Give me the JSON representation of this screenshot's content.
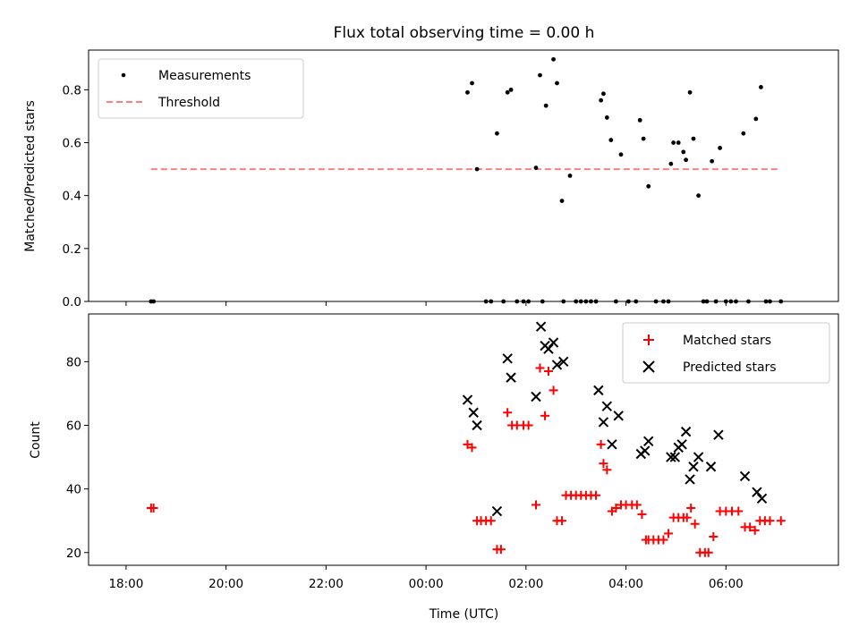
{
  "chart_data": [
    {
      "type": "scatter",
      "title": "Flux total observing time = 0.00 h",
      "xlabel": "",
      "ylabel": "Matched/Predicted stars",
      "xlim": [
        -6.75,
        8.25
      ],
      "ylim": [
        0,
        0.95
      ],
      "yticks": [
        0,
        0.2,
        0.4,
        0.6,
        0.8
      ],
      "ytick_labels": [
        "0.0",
        "0.2",
        "0.4",
        "0.6",
        "0.8"
      ],
      "legend_position": "top-left",
      "series": [
        {
          "name": "Measurements",
          "marker": "dot",
          "color": "#000000",
          "x": [
            -5.5,
            -5.45,
            0.83,
            0.92,
            1.02,
            1.2,
            1.3,
            1.42,
            1.55,
            1.63,
            1.7,
            1.82,
            1.95,
            2.05,
            2.2,
            2.28,
            2.33,
            2.4,
            2.55,
            2.62,
            2.72,
            2.75,
            2.88,
            3.0,
            3.1,
            3.2,
            3.3,
            3.4,
            3.5,
            3.55,
            3.62,
            3.7,
            3.8,
            3.9,
            4.05,
            4.2,
            4.28,
            4.35,
            4.45,
            4.6,
            4.75,
            4.85,
            4.9,
            4.95,
            5.05,
            5.15,
            5.2,
            5.28,
            5.35,
            5.45,
            5.55,
            5.62,
            5.72,
            5.8,
            5.88,
            6.0,
            6.1,
            6.2,
            6.35,
            6.45,
            6.6,
            6.7,
            6.8,
            6.88,
            7.1
          ],
          "y": [
            0.0,
            0.0,
            0.79,
            0.825,
            0.5,
            0.0,
            0.0,
            0.635,
            0.0,
            0.79,
            0.8,
            0.0,
            0.0,
            0.0,
            0.505,
            0.855,
            0.0,
            0.74,
            0.915,
            0.825,
            0.38,
            0.0,
            0.475,
            0.0,
            0.0,
            0.0,
            0.0,
            0.0,
            0.76,
            0.785,
            0.695,
            0.61,
            0.0,
            0.555,
            0.0,
            0.0,
            0.685,
            0.615,
            0.435,
            0.0,
            0.0,
            0.0,
            0.52,
            0.6,
            0.6,
            0.565,
            0.535,
            0.79,
            0.615,
            0.4,
            0.0,
            0.0,
            0.53,
            0.0,
            0.58,
            0.0,
            0.0,
            0.0,
            0.635,
            0.0,
            0.69,
            0.81,
            0.0,
            0.0,
            0.0
          ]
        },
        {
          "name": "Threshold",
          "marker": "dashed-line",
          "color": "#ff7f7f",
          "x": [
            -5.5,
            7.1
          ],
          "y": [
            0.5,
            0.5
          ]
        }
      ]
    },
    {
      "type": "scatter",
      "title": "",
      "xlabel": "Time (UTC)",
      "ylabel": "Count",
      "xlim": [
        -6.75,
        8.25
      ],
      "ylim": [
        16,
        95
      ],
      "xticks": [
        -6,
        -4,
        -2,
        0,
        2,
        4,
        6
      ],
      "xtick_labels": [
        "18:00",
        "20:00",
        "22:00",
        "00:00",
        "02:00",
        "04:00",
        "06:00"
      ],
      "yticks": [
        20,
        40,
        60,
        80
      ],
      "ytick_labels": [
        "20",
        "40",
        "60",
        "80"
      ],
      "legend_position": "top-right",
      "series": [
        {
          "name": "Matched stars",
          "marker": "plus",
          "color": "#ff0000",
          "x": [
            -5.5,
            -5.45,
            0.83,
            0.92,
            1.02,
            1.1,
            1.2,
            1.3,
            1.42,
            1.5,
            1.63,
            1.72,
            1.82,
            1.95,
            2.05,
            2.2,
            2.28,
            2.38,
            2.45,
            2.55,
            2.62,
            2.72,
            2.8,
            2.9,
            3.0,
            3.1,
            3.2,
            3.3,
            3.4,
            3.5,
            3.55,
            3.62,
            3.72,
            3.8,
            3.9,
            4.0,
            4.12,
            4.22,
            4.32,
            4.4,
            4.45,
            4.55,
            4.65,
            4.75,
            4.85,
            4.95,
            5.05,
            5.15,
            5.22,
            5.3,
            5.38,
            5.48,
            5.58,
            5.65,
            5.75,
            5.88,
            6.0,
            6.12,
            6.25,
            6.38,
            6.48,
            6.58,
            6.68,
            6.78,
            6.88,
            7.1
          ],
          "y": [
            34,
            34,
            54,
            53,
            30,
            30,
            30,
            30,
            21,
            21,
            64,
            60,
            60,
            60,
            60,
            35,
            78,
            63,
            77,
            71,
            30,
            30,
            38,
            38,
            38,
            38,
            38,
            38,
            38,
            54,
            48,
            46,
            33,
            34,
            35,
            35,
            35,
            35,
            32,
            24,
            24,
            24,
            24,
            24,
            26,
            31,
            31,
            31,
            31,
            34,
            29,
            20,
            20,
            20,
            25,
            33,
            33,
            33,
            33,
            28,
            28,
            27,
            30,
            30,
            30,
            30
          ]
        },
        {
          "name": "Predicted stars",
          "marker": "x",
          "color": "#000000",
          "x": [
            0.83,
            0.95,
            1.02,
            1.42,
            1.63,
            1.7,
            2.2,
            2.3,
            2.38,
            2.45,
            2.55,
            2.62,
            2.75,
            3.45,
            3.55,
            3.62,
            3.72,
            3.85,
            4.3,
            4.38,
            4.45,
            4.9,
            4.98,
            5.05,
            5.12,
            5.2,
            5.28,
            5.35,
            5.45,
            5.7,
            5.85,
            6.38,
            6.62,
            6.72
          ],
          "y": [
            68,
            64,
            60,
            33,
            81,
            75,
            69,
            91,
            85,
            84,
            86,
            79,
            80,
            71,
            61,
            66,
            54,
            63,
            51,
            52,
            55,
            50,
            50,
            53,
            54,
            58,
            43,
            47,
            50,
            47,
            57,
            44,
            39,
            37
          ]
        }
      ]
    }
  ]
}
